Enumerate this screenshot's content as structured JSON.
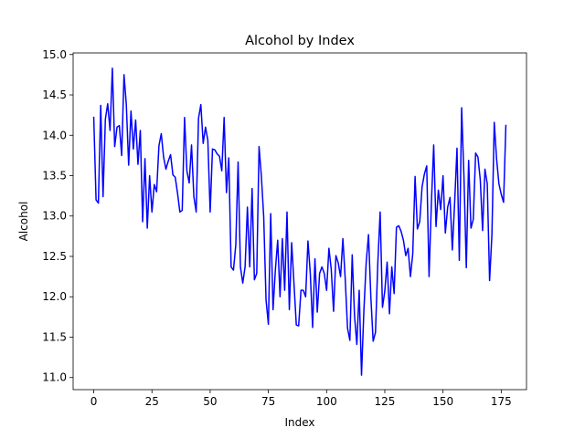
{
  "chart_data": {
    "type": "line",
    "title": "Alcohol by Index",
    "xlabel": "Index",
    "ylabel": "Alcohol",
    "xlim": [
      -8.85,
      185.85
    ],
    "ylim": [
      10.85,
      15.02
    ],
    "xticks": [
      0,
      25,
      50,
      75,
      100,
      125,
      150,
      175
    ],
    "yticks": [
      11.0,
      11.5,
      12.0,
      12.5,
      13.0,
      13.5,
      14.0,
      14.5,
      15.0
    ],
    "xtick_labels": [
      "0",
      "25",
      "50",
      "75",
      "100",
      "125",
      "150",
      "175"
    ],
    "ytick_labels": [
      "11.0",
      "11.5",
      "12.0",
      "12.5",
      "13.0",
      "13.5",
      "14.0",
      "14.5",
      "15.0"
    ],
    "grid": false,
    "line_color": "#0000ff",
    "series": [
      {
        "values": [
          14.23,
          13.2,
          13.16,
          14.37,
          13.24,
          14.2,
          14.39,
          14.06,
          14.83,
          13.86,
          14.1,
          14.12,
          13.75,
          14.75,
          14.38,
          13.63,
          14.3,
          13.83,
          14.19,
          13.64,
          14.06,
          12.93,
          13.71,
          12.85,
          13.5,
          13.05,
          13.39,
          13.3,
          13.87,
          14.02,
          13.73,
          13.58,
          13.68,
          13.76,
          13.51,
          13.48,
          13.28,
          13.05,
          13.07,
          14.22,
          13.56,
          13.41,
          13.88,
          13.24,
          13.05,
          14.21,
          14.38,
          13.9,
          14.1,
          13.94,
          13.05,
          13.83,
          13.82,
          13.77,
          13.74,
          13.56,
          14.22,
          13.29,
          13.72,
          12.37,
          12.33,
          12.64,
          13.67,
          12.37,
          12.17,
          12.37,
          13.11,
          12.37,
          13.34,
          12.21,
          12.29,
          13.86,
          13.49,
          12.99,
          11.96,
          11.66,
          13.03,
          11.84,
          12.33,
          12.7,
          12.0,
          12.72,
          12.08,
          13.05,
          11.84,
          12.67,
          12.16,
          11.65,
          11.64,
          12.08,
          12.08,
          12.0,
          12.69,
          12.29,
          11.62,
          12.47,
          11.81,
          12.29,
          12.37,
          12.29,
          12.08,
          12.6,
          12.34,
          11.82,
          12.51,
          12.42,
          12.25,
          12.72,
          12.22,
          11.61,
          11.46,
          12.52,
          11.76,
          11.41,
          12.08,
          11.03,
          11.82,
          12.42,
          12.77,
          12.0,
          11.45,
          11.56,
          12.42,
          13.05,
          11.87,
          12.07,
          12.43,
          11.79,
          12.37,
          12.04,
          12.86,
          12.88,
          12.81,
          12.7,
          12.51,
          12.6,
          12.25,
          12.53,
          13.49,
          12.84,
          12.93,
          13.36,
          13.52,
          13.62,
          12.25,
          13.16,
          13.88,
          12.87,
          13.32,
          13.08,
          13.5,
          12.79,
          13.11,
          13.23,
          12.58,
          13.17,
          13.84,
          12.45,
          14.34,
          13.48,
          12.36,
          13.69,
          12.85,
          12.96,
          13.78,
          13.73,
          13.45,
          12.82,
          13.58,
          13.4,
          12.2,
          12.77,
          14.16,
          13.71,
          13.4,
          13.27,
          13.17,
          14.13
        ]
      }
    ]
  }
}
